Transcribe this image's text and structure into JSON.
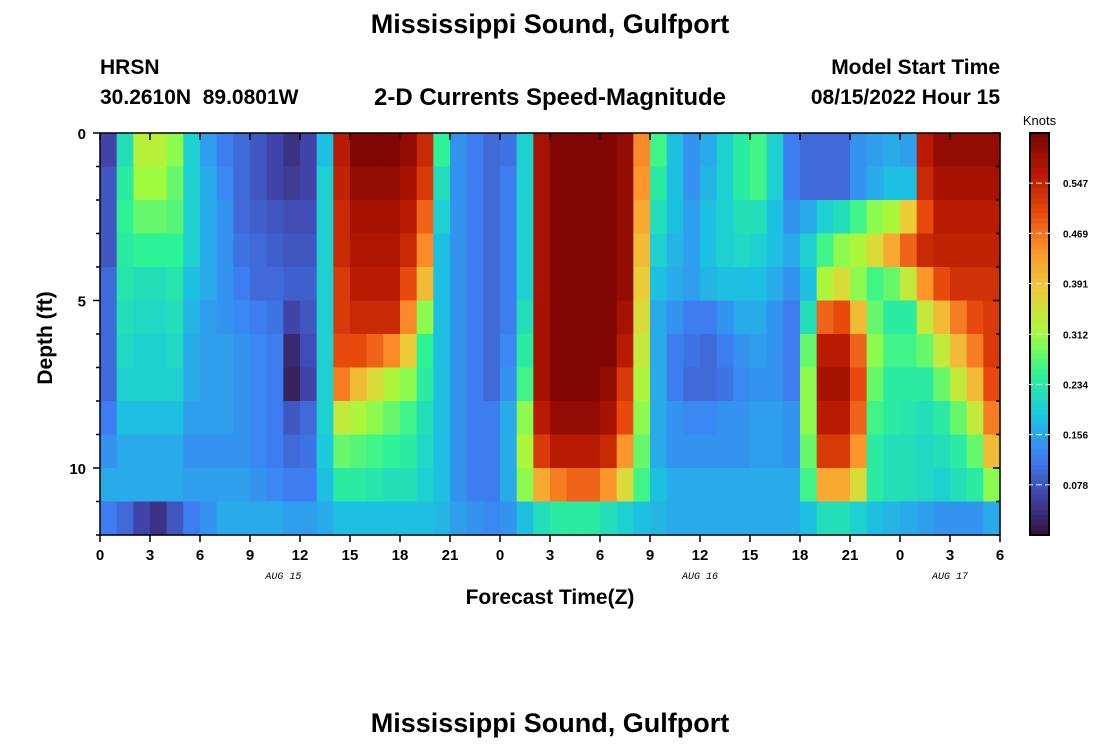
{
  "header": {
    "title": "Mississippi Sound, Gulfport",
    "station_id": "HRSN",
    "station_coords": "30.2610N  89.0801W",
    "subtitle": "2-D Currents Speed-Magnitude",
    "model_start_label": "Model Start Time",
    "model_start_value": "08/15/2022 Hour 15"
  },
  "footer": {
    "title": "Mississippi Sound, Gulfport"
  },
  "chart_data": {
    "type": "heatmap",
    "title": "2-D Currents Speed-Magnitude",
    "xlabel": "Forecast Time(Z)",
    "ylabel": "Depth (ft)",
    "x_range_hours": [
      0,
      54
    ],
    "y_range_ft": [
      0,
      12
    ],
    "x_ticks": [
      "0",
      "3",
      "6",
      "9",
      "12",
      "15",
      "18",
      "21",
      "0",
      "3",
      "6",
      "9",
      "12",
      "15",
      "18",
      "21",
      "0",
      "3",
      "6"
    ],
    "y_ticks": [
      "0",
      "5",
      "10"
    ],
    "date_labels": [
      {
        "text": "AUG 15",
        "hour": 11
      },
      {
        "text": "AUG 16",
        "hour": 36
      },
      {
        "text": "AUG 17",
        "hour": 51
      }
    ],
    "colorbar": {
      "label": "Knots",
      "min": 0.0,
      "max": 0.625,
      "ticks": [
        "0.547",
        "0.469",
        "0.391",
        "0.312",
        "0.234",
        "0.156",
        "0.078"
      ],
      "tick_values": [
        0.547,
        0.469,
        0.391,
        0.312,
        0.234,
        0.156,
        0.078
      ]
    },
    "depths_ft": [
      0.5,
      1.5,
      2.5,
      3.5,
      4.5,
      5.5,
      6.5,
      7.5,
      8.5,
      9.5,
      10.5,
      11.5
    ],
    "hours": [
      0,
      1,
      2,
      3,
      4,
      5,
      6,
      7,
      8,
      9,
      10,
      11,
      12,
      13,
      14,
      15,
      16,
      17,
      18,
      19,
      20,
      21,
      22,
      23,
      24,
      25,
      26,
      27,
      28,
      29,
      30,
      31,
      32,
      33,
      34,
      35,
      36,
      37,
      38,
      39,
      40,
      41,
      42,
      43,
      44,
      45,
      46,
      47,
      48,
      49,
      50,
      51,
      52,
      53
    ],
    "speed_knots": [
      [
        0.06,
        0.22,
        0.33,
        0.33,
        0.3,
        0.2,
        0.15,
        0.12,
        0.1,
        0.08,
        0.06,
        0.04,
        0.06,
        0.18,
        0.56,
        0.62,
        0.62,
        0.62,
        0.6,
        0.54,
        0.25,
        0.14,
        0.12,
        0.1,
        0.11,
        0.2,
        0.58,
        0.62,
        0.62,
        0.62,
        0.62,
        0.6,
        0.45,
        0.26,
        0.18,
        0.14,
        0.16,
        0.2,
        0.24,
        0.26,
        0.2,
        0.12,
        0.1,
        0.1,
        0.1,
        0.14,
        0.15,
        0.16,
        0.15,
        0.56,
        0.6,
        0.6,
        0.6,
        0.6
      ],
      [
        0.08,
        0.24,
        0.31,
        0.31,
        0.28,
        0.2,
        0.16,
        0.13,
        0.1,
        0.08,
        0.06,
        0.05,
        0.06,
        0.2,
        0.55,
        0.6,
        0.6,
        0.6,
        0.58,
        0.52,
        0.22,
        0.14,
        0.12,
        0.1,
        0.12,
        0.2,
        0.58,
        0.62,
        0.62,
        0.62,
        0.62,
        0.6,
        0.44,
        0.24,
        0.18,
        0.14,
        0.17,
        0.2,
        0.24,
        0.26,
        0.2,
        0.12,
        0.1,
        0.1,
        0.1,
        0.14,
        0.16,
        0.18,
        0.18,
        0.54,
        0.58,
        0.58,
        0.58,
        0.58
      ],
      [
        0.08,
        0.25,
        0.28,
        0.28,
        0.27,
        0.2,
        0.16,
        0.14,
        0.1,
        0.09,
        0.08,
        0.07,
        0.07,
        0.2,
        0.54,
        0.58,
        0.58,
        0.58,
        0.56,
        0.48,
        0.2,
        0.14,
        0.12,
        0.1,
        0.12,
        0.2,
        0.58,
        0.62,
        0.62,
        0.62,
        0.62,
        0.6,
        0.42,
        0.22,
        0.18,
        0.15,
        0.18,
        0.2,
        0.22,
        0.22,
        0.18,
        0.14,
        0.16,
        0.2,
        0.22,
        0.26,
        0.3,
        0.32,
        0.38,
        0.5,
        0.56,
        0.56,
        0.56,
        0.56
      ],
      [
        0.08,
        0.24,
        0.25,
        0.25,
        0.25,
        0.2,
        0.16,
        0.14,
        0.11,
        0.1,
        0.09,
        0.08,
        0.08,
        0.2,
        0.54,
        0.57,
        0.57,
        0.57,
        0.54,
        0.45,
        0.18,
        0.14,
        0.12,
        0.1,
        0.12,
        0.2,
        0.58,
        0.62,
        0.62,
        0.62,
        0.62,
        0.6,
        0.4,
        0.2,
        0.17,
        0.15,
        0.18,
        0.2,
        0.21,
        0.2,
        0.18,
        0.16,
        0.2,
        0.26,
        0.3,
        0.32,
        0.36,
        0.42,
        0.48,
        0.54,
        0.55,
        0.55,
        0.55,
        0.55
      ],
      [
        0.1,
        0.23,
        0.22,
        0.22,
        0.23,
        0.18,
        0.16,
        0.14,
        0.12,
        0.1,
        0.1,
        0.09,
        0.09,
        0.2,
        0.52,
        0.56,
        0.56,
        0.56,
        0.5,
        0.4,
        0.18,
        0.14,
        0.12,
        0.1,
        0.12,
        0.2,
        0.58,
        0.62,
        0.62,
        0.62,
        0.62,
        0.6,
        0.38,
        0.18,
        0.16,
        0.15,
        0.17,
        0.18,
        0.18,
        0.18,
        0.16,
        0.14,
        0.18,
        0.32,
        0.36,
        0.3,
        0.26,
        0.28,
        0.34,
        0.44,
        0.5,
        0.53,
        0.53,
        0.53
      ],
      [
        0.1,
        0.22,
        0.21,
        0.21,
        0.22,
        0.17,
        0.15,
        0.14,
        0.13,
        0.12,
        0.11,
        0.06,
        0.08,
        0.2,
        0.52,
        0.54,
        0.54,
        0.54,
        0.45,
        0.3,
        0.18,
        0.14,
        0.12,
        0.1,
        0.12,
        0.22,
        0.58,
        0.62,
        0.62,
        0.62,
        0.62,
        0.58,
        0.36,
        0.16,
        0.14,
        0.12,
        0.12,
        0.14,
        0.16,
        0.16,
        0.14,
        0.12,
        0.22,
        0.48,
        0.5,
        0.4,
        0.28,
        0.24,
        0.24,
        0.34,
        0.4,
        0.46,
        0.5,
        0.52
      ],
      [
        0.1,
        0.21,
        0.2,
        0.2,
        0.21,
        0.16,
        0.15,
        0.15,
        0.14,
        0.13,
        0.12,
        0.03,
        0.07,
        0.2,
        0.5,
        0.5,
        0.48,
        0.45,
        0.38,
        0.25,
        0.18,
        0.14,
        0.12,
        0.1,
        0.13,
        0.24,
        0.58,
        0.62,
        0.62,
        0.62,
        0.62,
        0.56,
        0.34,
        0.16,
        0.12,
        0.11,
        0.1,
        0.12,
        0.14,
        0.15,
        0.14,
        0.12,
        0.28,
        0.56,
        0.56,
        0.48,
        0.3,
        0.26,
        0.26,
        0.28,
        0.34,
        0.4,
        0.46,
        0.52
      ],
      [
        0.1,
        0.2,
        0.2,
        0.2,
        0.2,
        0.16,
        0.15,
        0.15,
        0.14,
        0.13,
        0.12,
        0.02,
        0.06,
        0.2,
        0.46,
        0.4,
        0.36,
        0.32,
        0.3,
        0.24,
        0.18,
        0.14,
        0.12,
        0.1,
        0.14,
        0.26,
        0.58,
        0.62,
        0.62,
        0.62,
        0.6,
        0.52,
        0.32,
        0.16,
        0.12,
        0.1,
        0.1,
        0.11,
        0.13,
        0.14,
        0.14,
        0.12,
        0.3,
        0.58,
        0.58,
        0.5,
        0.28,
        0.24,
        0.24,
        0.24,
        0.28,
        0.34,
        0.4,
        0.5
      ],
      [
        0.12,
        0.18,
        0.18,
        0.18,
        0.18,
        0.15,
        0.15,
        0.15,
        0.14,
        0.13,
        0.12,
        0.08,
        0.1,
        0.2,
        0.34,
        0.32,
        0.3,
        0.28,
        0.26,
        0.22,
        0.18,
        0.14,
        0.12,
        0.12,
        0.16,
        0.3,
        0.56,
        0.6,
        0.6,
        0.6,
        0.58,
        0.5,
        0.3,
        0.16,
        0.14,
        0.13,
        0.13,
        0.14,
        0.14,
        0.15,
        0.15,
        0.14,
        0.3,
        0.56,
        0.56,
        0.48,
        0.26,
        0.24,
        0.23,
        0.22,
        0.24,
        0.28,
        0.34,
        0.46
      ],
      [
        0.14,
        0.16,
        0.16,
        0.16,
        0.16,
        0.14,
        0.14,
        0.14,
        0.14,
        0.13,
        0.12,
        0.1,
        0.11,
        0.19,
        0.28,
        0.27,
        0.26,
        0.25,
        0.24,
        0.21,
        0.18,
        0.14,
        0.12,
        0.12,
        0.16,
        0.32,
        0.52,
        0.56,
        0.56,
        0.56,
        0.54,
        0.44,
        0.28,
        0.16,
        0.14,
        0.14,
        0.14,
        0.14,
        0.14,
        0.15,
        0.15,
        0.14,
        0.28,
        0.52,
        0.52,
        0.44,
        0.24,
        0.22,
        0.22,
        0.21,
        0.22,
        0.24,
        0.28,
        0.4
      ],
      [
        0.16,
        0.16,
        0.16,
        0.16,
        0.16,
        0.15,
        0.15,
        0.15,
        0.15,
        0.14,
        0.13,
        0.12,
        0.12,
        0.18,
        0.24,
        0.24,
        0.23,
        0.22,
        0.22,
        0.2,
        0.18,
        0.14,
        0.12,
        0.12,
        0.16,
        0.3,
        0.42,
        0.46,
        0.48,
        0.48,
        0.44,
        0.36,
        0.26,
        0.18,
        0.16,
        0.16,
        0.16,
        0.16,
        0.16,
        0.16,
        0.16,
        0.16,
        0.26,
        0.42,
        0.42,
        0.36,
        0.24,
        0.22,
        0.22,
        0.21,
        0.2,
        0.22,
        0.24,
        0.3
      ],
      [
        0.12,
        0.1,
        0.06,
        0.04,
        0.08,
        0.12,
        0.14,
        0.16,
        0.16,
        0.16,
        0.16,
        0.15,
        0.15,
        0.16,
        0.18,
        0.18,
        0.18,
        0.18,
        0.18,
        0.18,
        0.17,
        0.15,
        0.14,
        0.13,
        0.14,
        0.18,
        0.22,
        0.24,
        0.24,
        0.24,
        0.22,
        0.2,
        0.18,
        0.17,
        0.16,
        0.16,
        0.16,
        0.16,
        0.16,
        0.16,
        0.16,
        0.16,
        0.18,
        0.22,
        0.22,
        0.2,
        0.18,
        0.17,
        0.16,
        0.15,
        0.14,
        0.14,
        0.14,
        0.16
      ]
    ]
  }
}
